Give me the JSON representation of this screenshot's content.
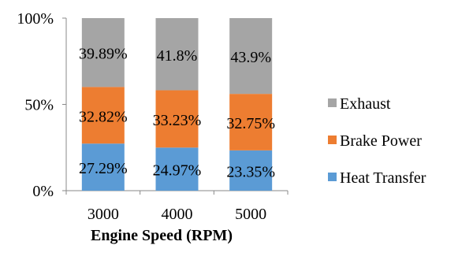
{
  "chart_data": {
    "type": "bar",
    "stacked": "percent",
    "categories": [
      "3000",
      "4000",
      "5000"
    ],
    "series": [
      {
        "name": "Heat Transfer",
        "values": [
          27.29,
          24.97,
          23.35
        ],
        "labels": [
          "27.29%",
          "24.97%",
          "23.35%"
        ],
        "color": "#5b9bd5"
      },
      {
        "name": "Brake Power",
        "values": [
          32.82,
          33.23,
          32.75
        ],
        "labels": [
          "32.82%",
          "33.23%",
          "32.75%"
        ],
        "color": "#ed7d31"
      },
      {
        "name": "Exhaust",
        "values": [
          39.89,
          41.8,
          43.9
        ],
        "labels": [
          "39.89%",
          "41.8%",
          "43.9%"
        ],
        "color": "#a5a5a5"
      }
    ],
    "y_ticks": [
      "0%",
      "50%",
      "100%"
    ],
    "ylim": [
      0,
      100
    ],
    "xlabel": "Engine Speed (RPM)",
    "ylabel": "",
    "title": "",
    "grid": false,
    "legend_position": "right"
  }
}
